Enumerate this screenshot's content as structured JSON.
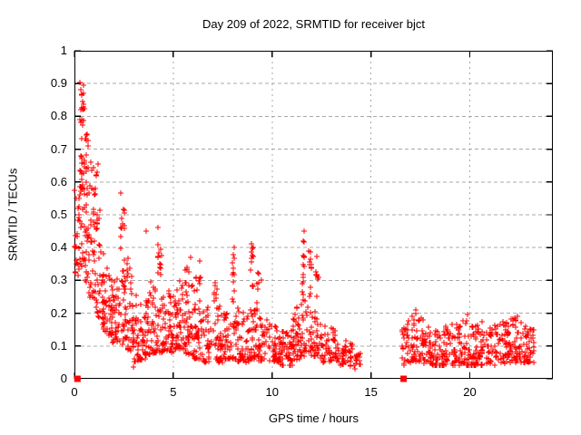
{
  "chart_data": {
    "type": "scatter",
    "title": "Day 209 of 2022, SRMTID for receiver bjct",
    "xlabel": "GPS time / hours",
    "ylabel": "SRMTID / TECUs",
    "xlim": [
      0,
      24.2
    ],
    "ylim": [
      0,
      1
    ],
    "xticks": [
      {
        "v": 0,
        "label": "0"
      },
      {
        "v": 5,
        "label": "5"
      },
      {
        "v": 10,
        "label": "10"
      },
      {
        "v": 15,
        "label": "15"
      },
      {
        "v": 20,
        "label": "20"
      }
    ],
    "yticks": [
      {
        "v": 0,
        "label": "0"
      },
      {
        "v": 0.1,
        "label": "0.1"
      },
      {
        "v": 0.2,
        "label": "0.2"
      },
      {
        "v": 0.3,
        "label": "0.3"
      },
      {
        "v": 0.4,
        "label": "0.4"
      },
      {
        "v": 0.5,
        "label": "0.5"
      },
      {
        "v": 0.6,
        "label": "0.6"
      },
      {
        "v": 0.7,
        "label": "0.7"
      },
      {
        "v": 0.8,
        "label": "0.8"
      },
      {
        "v": 0.9,
        "label": "0.9"
      },
      {
        "v": 1,
        "label": "1"
      }
    ],
    "grid": {
      "show": true,
      "color": "#a8a8a8",
      "h_dash": "4 3",
      "v_dash": "2 4"
    },
    "border_color": "#000000",
    "legend": "none",
    "marker": {
      "shape": "plus",
      "color": "#ff0000",
      "size": 7,
      "stroke_width": 1.3
    },
    "axis_zero_markers": {
      "shape": "filled-square",
      "color": "#ff0000",
      "size": 7,
      "x": [
        0.15,
        16.65
      ]
    },
    "data_gap_hours": [
      14.5,
      16.55
    ],
    "data_end_hour": 23.25,
    "scatter_generator": {
      "seed": 20220209,
      "segment_columns": [
        "x_start",
        "x_end",
        "count",
        "y_min_start",
        "y_min_end",
        "y_max_start",
        "y_max_end",
        "low_bias"
      ],
      "segments": [
        [
          0.0,
          0.25,
          22,
          0.3,
          0.32,
          0.58,
          0.55,
          1.4
        ],
        [
          0.25,
          0.5,
          40,
          0.33,
          0.33,
          0.92,
          0.88,
          1.2
        ],
        [
          0.3,
          0.5,
          14,
          0.82,
          0.82,
          0.91,
          0.9,
          1.0
        ],
        [
          0.5,
          0.75,
          40,
          0.3,
          0.28,
          0.8,
          0.7,
          1.3
        ],
        [
          0.75,
          1.05,
          35,
          0.25,
          0.24,
          0.68,
          0.66,
          1.6
        ],
        [
          1.05,
          1.35,
          32,
          0.2,
          0.18,
          0.66,
          0.5,
          1.8
        ],
        [
          1.35,
          1.85,
          48,
          0.14,
          0.13,
          0.42,
          0.34,
          1.6
        ],
        [
          1.85,
          2.25,
          45,
          0.11,
          0.11,
          0.32,
          0.3,
          1.5
        ],
        [
          2.3,
          2.55,
          16,
          0.3,
          0.3,
          0.6,
          0.57,
          1.0
        ],
        [
          2.25,
          2.65,
          30,
          0.11,
          0.1,
          0.3,
          0.3,
          1.5
        ],
        [
          2.65,
          3.0,
          38,
          0.09,
          0.08,
          0.42,
          0.3,
          1.8
        ],
        [
          3.0,
          3.6,
          52,
          0.05,
          0.06,
          0.26,
          0.24,
          1.7
        ],
        [
          3.6,
          4.1,
          46,
          0.07,
          0.08,
          0.3,
          0.3,
          1.7
        ],
        [
          4.2,
          4.45,
          14,
          0.28,
          0.3,
          0.47,
          0.45,
          1.0
        ],
        [
          4.1,
          4.55,
          30,
          0.08,
          0.08,
          0.28,
          0.28,
          1.5
        ],
        [
          4.55,
          5.05,
          46,
          0.08,
          0.08,
          0.28,
          0.26,
          1.6
        ],
        [
          5.05,
          5.55,
          50,
          0.09,
          0.09,
          0.3,
          0.3,
          1.5
        ],
        [
          5.55,
          6.05,
          50,
          0.08,
          0.07,
          0.35,
          0.33,
          1.7
        ],
        [
          6.05,
          6.55,
          46,
          0.06,
          0.06,
          0.33,
          0.3,
          1.8
        ],
        [
          6.55,
          7.55,
          70,
          0.05,
          0.05,
          0.22,
          0.22,
          1.6
        ],
        [
          7.05,
          7.2,
          8,
          0.18,
          0.18,
          0.3,
          0.3,
          1.0
        ],
        [
          7.55,
          8.25,
          48,
          0.06,
          0.06,
          0.24,
          0.22,
          1.6
        ],
        [
          7.95,
          8.1,
          12,
          0.22,
          0.22,
          0.41,
          0.41,
          1.0
        ],
        [
          8.25,
          8.85,
          45,
          0.05,
          0.05,
          0.22,
          0.2,
          1.6
        ],
        [
          8.9,
          9.05,
          13,
          0.2,
          0.2,
          0.44,
          0.43,
          1.0
        ],
        [
          8.85,
          9.3,
          32,
          0.06,
          0.06,
          0.2,
          0.22,
          1.5
        ],
        [
          9.2,
          9.35,
          9,
          0.2,
          0.2,
          0.34,
          0.34,
          1.0
        ],
        [
          9.3,
          10.4,
          75,
          0.05,
          0.05,
          0.2,
          0.16,
          1.6
        ],
        [
          10.4,
          11.05,
          55,
          0.04,
          0.04,
          0.15,
          0.16,
          1.5
        ],
        [
          11.05,
          11.45,
          38,
          0.05,
          0.06,
          0.2,
          0.24,
          1.4
        ],
        [
          11.5,
          11.65,
          14,
          0.25,
          0.25,
          0.47,
          0.46,
          1.0
        ],
        [
          11.45,
          12.05,
          36,
          0.07,
          0.07,
          0.25,
          0.25,
          1.4
        ],
        [
          11.85,
          12.0,
          11,
          0.25,
          0.25,
          0.42,
          0.4,
          1.0
        ],
        [
          12.2,
          12.35,
          9,
          0.22,
          0.22,
          0.38,
          0.36,
          1.0
        ],
        [
          12.05,
          12.55,
          34,
          0.07,
          0.06,
          0.22,
          0.18,
          1.5
        ],
        [
          12.55,
          13.25,
          48,
          0.05,
          0.05,
          0.17,
          0.15,
          1.5
        ],
        [
          13.25,
          14.05,
          42,
          0.04,
          0.04,
          0.13,
          0.11,
          1.4
        ],
        [
          14.05,
          14.5,
          16,
          0.04,
          0.04,
          0.11,
          0.09,
          1.3
        ],
        [
          16.55,
          17.05,
          30,
          0.04,
          0.05,
          0.16,
          0.2,
          1.4
        ],
        [
          17.05,
          17.65,
          45,
          0.05,
          0.05,
          0.22,
          0.18,
          1.5
        ],
        [
          17.65,
          18.45,
          58,
          0.04,
          0.04,
          0.16,
          0.16,
          1.5
        ],
        [
          18.45,
          19.25,
          58,
          0.04,
          0.04,
          0.17,
          0.17,
          1.5
        ],
        [
          19.25,
          20.25,
          72,
          0.04,
          0.04,
          0.19,
          0.17,
          1.5
        ],
        [
          20.25,
          21.25,
          72,
          0.04,
          0.04,
          0.17,
          0.17,
          1.5
        ],
        [
          21.25,
          22.05,
          58,
          0.04,
          0.05,
          0.18,
          0.18,
          1.5
        ],
        [
          22.05,
          22.85,
          58,
          0.05,
          0.05,
          0.19,
          0.17,
          1.5
        ],
        [
          22.85,
          23.25,
          32,
          0.05,
          0.05,
          0.17,
          0.15,
          1.4
        ]
      ],
      "outliers": [
        [
          0.05,
          0.4
        ],
        [
          0.08,
          0.55
        ],
        [
          0.95,
          0.645
        ],
        [
          1.15,
          0.63
        ],
        [
          1.2,
          0.655
        ],
        [
          3.0,
          0.035
        ],
        [
          3.62,
          0.45
        ],
        [
          5.9,
          0.37
        ],
        [
          6.35,
          0.36
        ],
        [
          9.45,
          0.3
        ],
        [
          14.2,
          0.03
        ],
        [
          17.25,
          0.21
        ],
        [
          19.9,
          0.195
        ],
        [
          20.6,
          0.175
        ],
        [
          22.4,
          0.19
        ]
      ]
    }
  }
}
